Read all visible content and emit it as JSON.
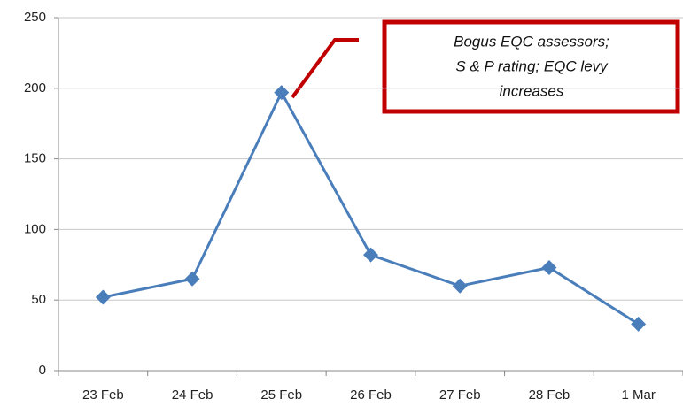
{
  "chart_data": {
    "type": "line",
    "categories": [
      "23 Feb",
      "24 Feb",
      "25 Feb",
      "26 Feb",
      "27 Feb",
      "28 Feb",
      "1 Mar"
    ],
    "series": [
      {
        "color": "#4a7ebb",
        "values": [
          52,
          65,
          197,
          82,
          60,
          73,
          33
        ]
      }
    ],
    "ylim": [
      0,
      250
    ],
    "yticks": [
      0,
      50,
      100,
      150,
      200,
      250
    ],
    "grid": true,
    "annotation": [
      "Bogus EQC assessors;",
      "S & P rating; EQC levy",
      "increases"
    ],
    "annotation_color": "#c00000"
  }
}
